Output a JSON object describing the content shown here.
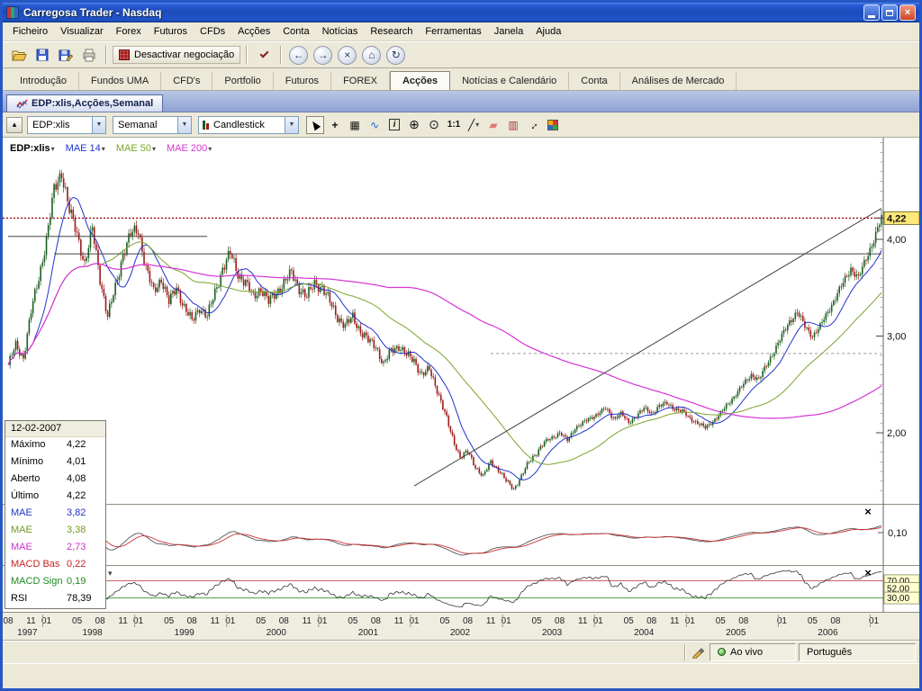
{
  "window": {
    "title": "Carregosa Trader - Nasdaq"
  },
  "menu": {
    "items": [
      "Ficheiro",
      "Visualizar",
      "Forex",
      "Futuros",
      "CFDs",
      "Acções",
      "Conta",
      "Notícias",
      "Research",
      "Ferramentas",
      "Janela",
      "Ajuda"
    ]
  },
  "toolbar": {
    "trade_toggle_label": "Desactivar negociação"
  },
  "main_tabs": {
    "items": [
      "Introdução",
      "Fundos UMA",
      "CFD's",
      "Portfolio",
      "Futuros",
      "FOREX",
      "Acções",
      "Notícias e Calendário",
      "Conta",
      "Análises de Mercado"
    ],
    "active": "Acções"
  },
  "doc_tab": {
    "label": "EDP:xlis,Acções,Semanal"
  },
  "chart_toolbar": {
    "symbol": "EDP:xlis",
    "period": "Semanal",
    "chart_type": "Candlestick",
    "one_to_one": "1:1"
  },
  "icons": {
    "collapse": "▴",
    "back": "←",
    "forward": "→",
    "stop": "×",
    "home": "⌂",
    "refresh": "↻",
    "crosshair": "+",
    "grid": "▦",
    "indicators": "∿",
    "info": "i",
    "zoom_in": "⊕",
    "zoom_out": "⊙",
    "line": "╱",
    "eraser": "▰",
    "pattern": "▥",
    "fit": "↔",
    "caret": "▾",
    "combo_arrow": "▼",
    "close_pane": "×"
  },
  "tooltip": {
    "date": "12-02-2007",
    "rows": [
      {
        "label": "Máximo",
        "value": "4,22",
        "color": "#000000"
      },
      {
        "label": "Mínimo",
        "value": "4,01",
        "color": "#000000"
      },
      {
        "label": "Aberto",
        "value": "4,08",
        "color": "#000000"
      },
      {
        "label": "Último",
        "value": "4,22",
        "color": "#000000"
      },
      {
        "label": "MAE",
        "value": "3,82",
        "color": "#2233cc"
      },
      {
        "label": "MAE",
        "value": "3,38",
        "color": "#6f9a1f"
      },
      {
        "label": "MAE",
        "value": "2,73",
        "color": "#cc33cc"
      },
      {
        "label": "MACD Bas",
        "value": "0,22",
        "color": "#cc2222"
      },
      {
        "label": "MACD Sign",
        "value": "0,19",
        "color": "#1f8a1f"
      },
      {
        "label": "RSI",
        "value": "78,39",
        "color": "#000000"
      }
    ]
  },
  "status_bar": {
    "live": "Ao vivo",
    "language": "Português"
  },
  "chart_data": {
    "type": "candlestick",
    "symbol": "EDP:xlis",
    "timeframe": "Semanal",
    "x_range": [
      "1997-08",
      "2007-02"
    ],
    "visible_price_range": [
      1.3,
      5.0
    ],
    "last": {
      "date": "12-02-2007",
      "open": 4.08,
      "high": 4.22,
      "low": 4.01,
      "close": 4.22
    },
    "monthly_closes": [
      2.7,
      2.9,
      2.78,
      3.25,
      3.6,
      4.0,
      4.5,
      4.7,
      4.3,
      4.05,
      3.75,
      4.1,
      3.6,
      3.2,
      3.5,
      3.85,
      4.05,
      4.1,
      3.7,
      3.45,
      3.6,
      3.35,
      3.5,
      3.3,
      3.15,
      3.3,
      3.2,
      3.45,
      3.7,
      3.85,
      3.65,
      3.55,
      3.4,
      3.5,
      3.35,
      3.45,
      3.55,
      3.65,
      3.5,
      3.4,
      3.55,
      3.5,
      3.35,
      3.2,
      3.1,
      3.2,
      3.05,
      2.95,
      2.9,
      2.7,
      2.85,
      2.9,
      2.8,
      2.75,
      2.6,
      2.65,
      2.45,
      2.2,
      1.95,
      1.75,
      1.8,
      1.65,
      1.55,
      1.7,
      1.62,
      1.5,
      1.42,
      1.55,
      1.7,
      1.8,
      1.9,
      1.95,
      2.0,
      1.92,
      2.05,
      2.1,
      2.15,
      2.2,
      2.25,
      2.15,
      2.2,
      2.1,
      2.18,
      2.25,
      2.2,
      2.28,
      2.3,
      2.25,
      2.22,
      2.15,
      2.1,
      2.05,
      2.12,
      2.2,
      2.3,
      2.4,
      2.5,
      2.6,
      2.55,
      2.7,
      2.85,
      3.0,
      3.15,
      3.25,
      3.1,
      3.0,
      3.1,
      3.25,
      3.4,
      3.55,
      3.7,
      3.6,
      3.8,
      4.0,
      4.22
    ],
    "overlays": [
      {
        "label": "MAE 14",
        "period": 14,
        "color": "#2233cc",
        "last": 3.82
      },
      {
        "label": "MAE 50",
        "period": 50,
        "color": "#7aa52a",
        "last": 3.38
      },
      {
        "label": "MAE 200",
        "period": 200,
        "color": "#d633d6",
        "last": 2.73
      }
    ],
    "indicators": [
      {
        "name": "MACD",
        "bas": 0.22,
        "sign": 0.19
      },
      {
        "name": "RSI",
        "value": 78.39,
        "levels": [
          70,
          30
        ]
      }
    ],
    "price_axis": [
      {
        "label": "4,22",
        "price": 4.22,
        "box": true
      },
      {
        "label": "4,00",
        "price": 4.0
      },
      {
        "label": "3,00",
        "price": 3.0
      },
      {
        "label": "2,00",
        "price": 2.0
      }
    ],
    "macd_axis_label": {
      "label": "0,10",
      "level": 0.1
    },
    "rsi_levels": [
      {
        "label": "70,00",
        "level": 70,
        "line": true,
        "color": "#cc5555"
      },
      {
        "label": "52,00",
        "level": 52,
        "line": false,
        "color": ""
      },
      {
        "label": "30,00",
        "level": 30,
        "line": true,
        "color": "#44a044"
      }
    ],
    "annotations": {
      "last_price_line": {
        "price": 4.22
      },
      "hlines": [
        {
          "price": 4.03,
          "m1": 0,
          "m2": 26
        },
        {
          "price": 3.85,
          "m1": 6,
          "m2": 114
        },
        {
          "price": 2.82,
          "m1": 63,
          "m2": 114,
          "dashed": true
        }
      ],
      "trendline": {
        "m1": 53,
        "p1": 1.45,
        "m2": 115,
        "p2": 4.32
      }
    },
    "x_axis": {
      "month_labels": [
        {
          "y": 1997,
          "mo": 8,
          "t": "08"
        },
        {
          "y": 1997,
          "mo": 11,
          "t": "11"
        },
        {
          "y": 1998,
          "mo": 1,
          "t": "01"
        },
        {
          "y": 1998,
          "mo": 5,
          "t": "05"
        },
        {
          "y": 1998,
          "mo": 8,
          "t": "08"
        },
        {
          "y": 1998,
          "mo": 11,
          "t": "11"
        },
        {
          "y": 1999,
          "mo": 1,
          "t": "01"
        },
        {
          "y": 1999,
          "mo": 5,
          "t": "05"
        },
        {
          "y": 1999,
          "mo": 8,
          "t": "08"
        },
        {
          "y": 1999,
          "mo": 11,
          "t": "11"
        },
        {
          "y": 2000,
          "mo": 1,
          "t": "01"
        },
        {
          "y": 2000,
          "mo": 5,
          "t": "05"
        },
        {
          "y": 2000,
          "mo": 8,
          "t": "08"
        },
        {
          "y": 2000,
          "mo": 11,
          "t": "11"
        },
        {
          "y": 2001,
          "mo": 1,
          "t": "01"
        },
        {
          "y": 2001,
          "mo": 5,
          "t": "05"
        },
        {
          "y": 2001,
          "mo": 8,
          "t": "08"
        },
        {
          "y": 2001,
          "mo": 11,
          "t": "11"
        },
        {
          "y": 2002,
          "mo": 1,
          "t": "01"
        },
        {
          "y": 2002,
          "mo": 5,
          "t": "05"
        },
        {
          "y": 2002,
          "mo": 8,
          "t": "08"
        },
        {
          "y": 2002,
          "mo": 11,
          "t": "11"
        },
        {
          "y": 2003,
          "mo": 1,
          "t": "01"
        },
        {
          "y": 2003,
          "mo": 5,
          "t": "05"
        },
        {
          "y": 2003,
          "mo": 8,
          "t": "08"
        },
        {
          "y": 2003,
          "mo": 11,
          "t": "11"
        },
        {
          "y": 2004,
          "mo": 1,
          "t": "01"
        },
        {
          "y": 2004,
          "mo": 5,
          "t": "05"
        },
        {
          "y": 2004,
          "mo": 8,
          "t": "08"
        },
        {
          "y": 2004,
          "mo": 11,
          "t": "11"
        },
        {
          "y": 2005,
          "mo": 1,
          "t": "01"
        },
        {
          "y": 2005,
          "mo": 5,
          "t": "05"
        },
        {
          "y": 2005,
          "mo": 8,
          "t": "08"
        },
        {
          "y": 2006,
          "mo": 1,
          "t": "01"
        },
        {
          "y": 2006,
          "mo": 5,
          "t": "05"
        },
        {
          "y": 2006,
          "mo": 8,
          "t": "08"
        },
        {
          "y": 2007,
          "mo": 1,
          "t": "01"
        }
      ],
      "year_labels": [
        {
          "y": 1997,
          "t": "1997"
        },
        {
          "y": 1998,
          "t": "1998"
        },
        {
          "y": 1999,
          "t": "1999"
        },
        {
          "y": 2000,
          "t": "2000"
        },
        {
          "y": 2001,
          "t": "2001"
        },
        {
          "y": 2002,
          "t": "2002"
        },
        {
          "y": 2003,
          "t": "2003"
        },
        {
          "y": 2004,
          "t": "2004"
        },
        {
          "y": 2005,
          "t": "2005"
        },
        {
          "y": 2006,
          "t": "2006"
        }
      ]
    },
    "colors": {
      "up": "#1b5e20",
      "down": "#9e1a1a",
      "macd": "#555555",
      "macd_signal": "#cc3333",
      "rsi": "#333333",
      "last_price_line": "#990000"
    }
  }
}
